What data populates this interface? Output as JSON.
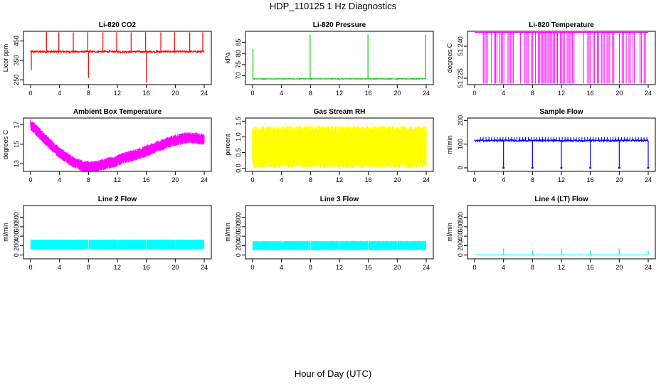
{
  "figure": {
    "title": "HDP_110125  1 Hz Diagnostics",
    "xlabel": "Hour of Day (UTC)"
  },
  "chart_data": [
    {
      "type": "line",
      "title": "Li-820 CO2",
      "ylabel": "Licor ppm",
      "color": "#ff0000",
      "xlim": [
        0,
        24
      ],
      "ylim": [
        225,
        500
      ],
      "xticks": [
        0,
        4,
        8,
        12,
        16,
        20,
        24
      ],
      "yticks": [
        250,
        350,
        450
      ],
      "series": [
        {
          "name": "CO2",
          "baseline": 395,
          "noise": 5,
          "spikes": [
            {
              "x": 2.2,
              "y": 495
            },
            {
              "x": 3.9,
              "y": 495
            },
            {
              "x": 5.9,
              "y": 495
            },
            {
              "x": 7.9,
              "y": 495
            },
            {
              "x": 8.0,
              "y": 260
            },
            {
              "x": 10.0,
              "y": 495
            },
            {
              "x": 11.9,
              "y": 495
            },
            {
              "x": 13.9,
              "y": 495
            },
            {
              "x": 15.9,
              "y": 495
            },
            {
              "x": 16.0,
              "y": 235
            },
            {
              "x": 18.0,
              "y": 495
            },
            {
              "x": 19.9,
              "y": 495
            },
            {
              "x": 22.0,
              "y": 495
            },
            {
              "x": 23.8,
              "y": 495
            },
            {
              "x": 0.1,
              "y": 300
            }
          ]
        }
      ]
    },
    {
      "type": "line",
      "title": "Li-820 Pressure",
      "ylabel": "kPa",
      "color": "#00cc00",
      "xlim": [
        0,
        24
      ],
      "ylim": [
        66,
        90
      ],
      "xticks": [
        0,
        4,
        8,
        12,
        16,
        20,
        24
      ],
      "yticks": [
        70,
        75,
        80,
        85
      ],
      "series": [
        {
          "name": "Pressure",
          "baseline": 68.6,
          "noise": 0.15,
          "spikes": [
            {
              "x": 0.05,
              "y": 82
            },
            {
              "x": 7.95,
              "y": 88.5
            },
            {
              "x": 15.95,
              "y": 88.5
            },
            {
              "x": 23.9,
              "y": 88.5
            }
          ]
        }
      ]
    },
    {
      "type": "line",
      "title": "Li-820 Temperature",
      "ylabel": "degrees C",
      "color": "#ff00ff",
      "xlim": [
        0,
        24
      ],
      "ylim": [
        51.222,
        51.247
      ],
      "xticks": [
        0,
        4,
        8,
        12,
        16,
        20,
        24
      ],
      "yticks": [
        51.225,
        51.24
      ],
      "tick_labels": [
        "51.225",
        "51.240"
      ],
      "series": [
        {
          "name": "Temperature",
          "low": 51.2225,
          "high": 51.2465,
          "start": 1.2
        }
      ]
    },
    {
      "type": "line",
      "title": "Ambient Box Temperature",
      "ylabel": "degrees C",
      "color": "#ff00ff",
      "xlim": [
        0,
        24
      ],
      "ylim": [
        12.2,
        17.7
      ],
      "xticks": [
        0,
        4,
        8,
        12,
        16,
        20,
        24
      ],
      "yticks": [
        13,
        15,
        17
      ],
      "series": [
        {
          "name": "Box Temperature",
          "x": [
            0,
            1,
            2,
            3,
            4,
            5,
            6,
            7,
            8,
            9,
            10,
            11,
            12,
            13,
            14,
            15,
            16,
            17,
            18,
            19,
            20,
            21,
            22,
            23,
            24
          ],
          "y": [
            17.0,
            16.3,
            15.5,
            14.8,
            14.1,
            13.6,
            13.1,
            12.8,
            12.7,
            12.7,
            12.9,
            13.1,
            13.3,
            13.6,
            13.8,
            14.0,
            14.3,
            14.6,
            14.9,
            15.2,
            15.4,
            15.6,
            15.7,
            15.6,
            15.5
          ],
          "band": 0.6
        }
      ]
    },
    {
      "type": "line",
      "title": "Gas Stream RH",
      "ylabel": "percent",
      "color": "#ffff00",
      "xlim": [
        0,
        24
      ],
      "ylim": [
        -0.1,
        1.6
      ],
      "xticks": [
        0,
        4,
        8,
        12,
        16,
        20,
        24
      ],
      "yticks": [
        0.0,
        0.5,
        1.0,
        1.5
      ],
      "tick_labels": [
        "0.0",
        "0.5",
        "1.0",
        "1.5"
      ],
      "series": [
        {
          "name": "RH",
          "center": 0.65,
          "band_low": 0.0,
          "band_high": 1.35
        }
      ]
    },
    {
      "type": "line",
      "title": "Sample Flow",
      "ylabel": "ml/min",
      "color": "#0000ff",
      "xlim": [
        0,
        24
      ],
      "ylim": [
        -15,
        210
      ],
      "xticks": [
        0,
        4,
        8,
        12,
        16,
        20,
        24
      ],
      "yticks": [
        0,
        100,
        200
      ],
      "series": [
        {
          "name": "Sample Flow",
          "baseline": 115,
          "noise": 4,
          "dots": 130,
          "dips": [
            {
              "x": 4.0,
              "y": 0
            },
            {
              "x": 8.0,
              "y": 0
            },
            {
              "x": 12.0,
              "y": 0
            },
            {
              "x": 16.0,
              "y": 0
            },
            {
              "x": 20.0,
              "y": 0
            },
            {
              "x": 24.0,
              "y": 0
            }
          ]
        }
      ]
    },
    {
      "type": "line",
      "title": "Line 2 Flow",
      "ylabel": "ml/min",
      "color": "#00ffff",
      "xlim": [
        0,
        24
      ],
      "ylim": [
        -80,
        1050
      ],
      "xticks": [
        0,
        4,
        8,
        12,
        16,
        20,
        24
      ],
      "yticks": [
        0,
        200,
        400,
        600,
        800
      ],
      "series": [
        {
          "name": "Line 2",
          "band_low": 120,
          "band_high": 330,
          "gaps": [
            4,
            8,
            12,
            16,
            20
          ]
        }
      ]
    },
    {
      "type": "line",
      "title": "Line 3 Flow",
      "ylabel": "ml/min",
      "color": "#00ffff",
      "xlim": [
        0,
        24
      ],
      "ylim": [
        -80,
        1050
      ],
      "xticks": [
        0,
        4,
        8,
        12,
        16,
        20,
        24
      ],
      "yticks": [
        0,
        200,
        400,
        600,
        800
      ],
      "series": [
        {
          "name": "Line 3",
          "band_low": 100,
          "band_high": 300,
          "gaps": [
            4,
            8,
            12,
            16,
            20
          ]
        }
      ]
    },
    {
      "type": "line",
      "title": "Line 4 (LT) Flow",
      "ylabel": "ml/min",
      "color": "#00ffff",
      "xlim": [
        0,
        24
      ],
      "ylim": [
        -80,
        1050
      ],
      "xticks": [
        0,
        4,
        8,
        12,
        16,
        20,
        24
      ],
      "yticks": [
        0,
        200,
        400,
        600,
        800
      ],
      "series": [
        {
          "name": "Line 4",
          "baseline": 5,
          "spikes": [
            {
              "x": 4.0,
              "y": 140
            },
            {
              "x": 8.0,
              "y": 90
            },
            {
              "x": 12.0,
              "y": 140
            },
            {
              "x": 16.0,
              "y": 90
            },
            {
              "x": 20.0,
              "y": 140
            },
            {
              "x": 24.0,
              "y": 90
            }
          ]
        }
      ]
    }
  ]
}
